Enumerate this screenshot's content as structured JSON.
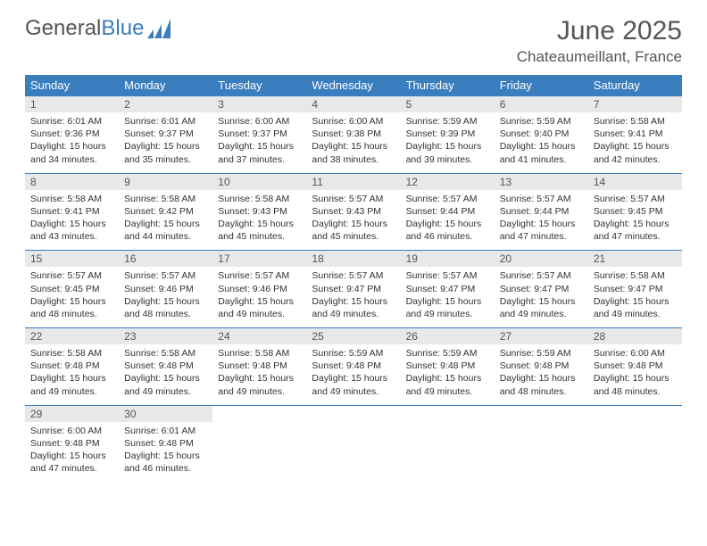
{
  "brand": {
    "part1": "General",
    "part2": "Blue"
  },
  "title": "June 2025",
  "location": "Chateaumeillant, France",
  "colors": {
    "header_bg": "#3a7ebf",
    "header_text": "#ffffff",
    "daynum_bg": "#e8e8e8",
    "text": "#333333",
    "rule": "#3a7ebf",
    "page_bg": "#ffffff"
  },
  "typography": {
    "title_fontsize": 30,
    "location_fontsize": 17,
    "weekday_fontsize": 13,
    "daynum_fontsize": 12,
    "body_fontsize": 10.5
  },
  "weekdays": [
    "Sunday",
    "Monday",
    "Tuesday",
    "Wednesday",
    "Thursday",
    "Friday",
    "Saturday"
  ],
  "weeks": [
    [
      {
        "n": "1",
        "sr": "Sunrise: 6:01 AM",
        "ss": "Sunset: 9:36 PM",
        "d1": "Daylight: 15 hours",
        "d2": "and 34 minutes."
      },
      {
        "n": "2",
        "sr": "Sunrise: 6:01 AM",
        "ss": "Sunset: 9:37 PM",
        "d1": "Daylight: 15 hours",
        "d2": "and 35 minutes."
      },
      {
        "n": "3",
        "sr": "Sunrise: 6:00 AM",
        "ss": "Sunset: 9:37 PM",
        "d1": "Daylight: 15 hours",
        "d2": "and 37 minutes."
      },
      {
        "n": "4",
        "sr": "Sunrise: 6:00 AM",
        "ss": "Sunset: 9:38 PM",
        "d1": "Daylight: 15 hours",
        "d2": "and 38 minutes."
      },
      {
        "n": "5",
        "sr": "Sunrise: 5:59 AM",
        "ss": "Sunset: 9:39 PM",
        "d1": "Daylight: 15 hours",
        "d2": "and 39 minutes."
      },
      {
        "n": "6",
        "sr": "Sunrise: 5:59 AM",
        "ss": "Sunset: 9:40 PM",
        "d1": "Daylight: 15 hours",
        "d2": "and 41 minutes."
      },
      {
        "n": "7",
        "sr": "Sunrise: 5:58 AM",
        "ss": "Sunset: 9:41 PM",
        "d1": "Daylight: 15 hours",
        "d2": "and 42 minutes."
      }
    ],
    [
      {
        "n": "8",
        "sr": "Sunrise: 5:58 AM",
        "ss": "Sunset: 9:41 PM",
        "d1": "Daylight: 15 hours",
        "d2": "and 43 minutes."
      },
      {
        "n": "9",
        "sr": "Sunrise: 5:58 AM",
        "ss": "Sunset: 9:42 PM",
        "d1": "Daylight: 15 hours",
        "d2": "and 44 minutes."
      },
      {
        "n": "10",
        "sr": "Sunrise: 5:58 AM",
        "ss": "Sunset: 9:43 PM",
        "d1": "Daylight: 15 hours",
        "d2": "and 45 minutes."
      },
      {
        "n": "11",
        "sr": "Sunrise: 5:57 AM",
        "ss": "Sunset: 9:43 PM",
        "d1": "Daylight: 15 hours",
        "d2": "and 45 minutes."
      },
      {
        "n": "12",
        "sr": "Sunrise: 5:57 AM",
        "ss": "Sunset: 9:44 PM",
        "d1": "Daylight: 15 hours",
        "d2": "and 46 minutes."
      },
      {
        "n": "13",
        "sr": "Sunrise: 5:57 AM",
        "ss": "Sunset: 9:44 PM",
        "d1": "Daylight: 15 hours",
        "d2": "and 47 minutes."
      },
      {
        "n": "14",
        "sr": "Sunrise: 5:57 AM",
        "ss": "Sunset: 9:45 PM",
        "d1": "Daylight: 15 hours",
        "d2": "and 47 minutes."
      }
    ],
    [
      {
        "n": "15",
        "sr": "Sunrise: 5:57 AM",
        "ss": "Sunset: 9:45 PM",
        "d1": "Daylight: 15 hours",
        "d2": "and 48 minutes."
      },
      {
        "n": "16",
        "sr": "Sunrise: 5:57 AM",
        "ss": "Sunset: 9:46 PM",
        "d1": "Daylight: 15 hours",
        "d2": "and 48 minutes."
      },
      {
        "n": "17",
        "sr": "Sunrise: 5:57 AM",
        "ss": "Sunset: 9:46 PM",
        "d1": "Daylight: 15 hours",
        "d2": "and 49 minutes."
      },
      {
        "n": "18",
        "sr": "Sunrise: 5:57 AM",
        "ss": "Sunset: 9:47 PM",
        "d1": "Daylight: 15 hours",
        "d2": "and 49 minutes."
      },
      {
        "n": "19",
        "sr": "Sunrise: 5:57 AM",
        "ss": "Sunset: 9:47 PM",
        "d1": "Daylight: 15 hours",
        "d2": "and 49 minutes."
      },
      {
        "n": "20",
        "sr": "Sunrise: 5:57 AM",
        "ss": "Sunset: 9:47 PM",
        "d1": "Daylight: 15 hours",
        "d2": "and 49 minutes."
      },
      {
        "n": "21",
        "sr": "Sunrise: 5:58 AM",
        "ss": "Sunset: 9:47 PM",
        "d1": "Daylight: 15 hours",
        "d2": "and 49 minutes."
      }
    ],
    [
      {
        "n": "22",
        "sr": "Sunrise: 5:58 AM",
        "ss": "Sunset: 9:48 PM",
        "d1": "Daylight: 15 hours",
        "d2": "and 49 minutes."
      },
      {
        "n": "23",
        "sr": "Sunrise: 5:58 AM",
        "ss": "Sunset: 9:48 PM",
        "d1": "Daylight: 15 hours",
        "d2": "and 49 minutes."
      },
      {
        "n": "24",
        "sr": "Sunrise: 5:58 AM",
        "ss": "Sunset: 9:48 PM",
        "d1": "Daylight: 15 hours",
        "d2": "and 49 minutes."
      },
      {
        "n": "25",
        "sr": "Sunrise: 5:59 AM",
        "ss": "Sunset: 9:48 PM",
        "d1": "Daylight: 15 hours",
        "d2": "and 49 minutes."
      },
      {
        "n": "26",
        "sr": "Sunrise: 5:59 AM",
        "ss": "Sunset: 9:48 PM",
        "d1": "Daylight: 15 hours",
        "d2": "and 49 minutes."
      },
      {
        "n": "27",
        "sr": "Sunrise: 5:59 AM",
        "ss": "Sunset: 9:48 PM",
        "d1": "Daylight: 15 hours",
        "d2": "and 48 minutes."
      },
      {
        "n": "28",
        "sr": "Sunrise: 6:00 AM",
        "ss": "Sunset: 9:48 PM",
        "d1": "Daylight: 15 hours",
        "d2": "and 48 minutes."
      }
    ],
    [
      {
        "n": "29",
        "sr": "Sunrise: 6:00 AM",
        "ss": "Sunset: 9:48 PM",
        "d1": "Daylight: 15 hours",
        "d2": "and 47 minutes."
      },
      {
        "n": "30",
        "sr": "Sunrise: 6:01 AM",
        "ss": "Sunset: 9:48 PM",
        "d1": "Daylight: 15 hours",
        "d2": "and 46 minutes."
      },
      {
        "empty": true
      },
      {
        "empty": true
      },
      {
        "empty": true
      },
      {
        "empty": true
      },
      {
        "empty": true
      }
    ]
  ]
}
